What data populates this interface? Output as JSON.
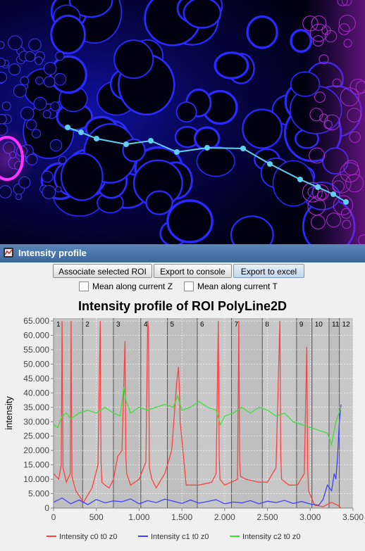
{
  "window": {
    "title": "Intensity profile",
    "buttons": {
      "associate": "Associate selected ROI",
      "console": "Export to console",
      "excel": "Export to excel"
    },
    "checkboxes": {
      "mean_z": {
        "label": "Mean along current Z",
        "checked": false
      },
      "mean_t": {
        "label": "Mean along current T",
        "checked": false
      }
    }
  },
  "chart_data": {
    "type": "line",
    "title": "Intensity profile of ROI PolyLine2D",
    "xlabel": "",
    "ylabel": "intensity",
    "xlim": [
      0,
      3500
    ],
    "ylim": [
      0,
      66000
    ],
    "x_ticks": [
      0,
      500,
      1000,
      1500,
      2000,
      2500,
      3000,
      3500
    ],
    "x_tick_labels": [
      "0",
      "500",
      "1.000",
      "1.500",
      "2.000",
      "2.500",
      "3.000",
      "3.500"
    ],
    "y_ticks": [
      0,
      5000,
      10000,
      15000,
      20000,
      25000,
      30000,
      35000,
      40000,
      45000,
      50000,
      55000,
      60000,
      65000
    ],
    "y_tick_labels": [
      "0",
      "5.000",
      "10.000",
      "15.000",
      "20.000",
      "25.000",
      "30.000",
      "35.000",
      "40.000",
      "45.000",
      "50.000",
      "55.000",
      "60.000",
      "65.000"
    ],
    "segments": [
      {
        "label": "1",
        "x0": 0,
        "x1": 180
      },
      {
        "label": "2",
        "x0": 340,
        "x1": 350
      },
      {
        "label": "3",
        "x0": 700,
        "x1": 720
      },
      {
        "label": "4",
        "x0": 1020,
        "x1": 1030
      },
      {
        "label": "5",
        "x0": 1330,
        "x1": 1340
      },
      {
        "label": "6",
        "x0": 1680,
        "x1": 1690
      },
      {
        "label": "7",
        "x0": 2080,
        "x1": 2090
      },
      {
        "label": "8",
        "x0": 2440,
        "x1": 2450
      },
      {
        "label": "9",
        "x0": 2840,
        "x1": 2850
      },
      {
        "label": "10",
        "x0": 3020,
        "x1": 3030
      },
      {
        "label": "11",
        "x0": 3220,
        "x1": 3230
      },
      {
        "label": "12",
        "x0": 3340,
        "x1": 3350
      }
    ],
    "series": [
      {
        "name": "Intensity c0 t0 z0",
        "color": "#ff4040",
        "x": [
          0,
          60,
          90,
          100,
          110,
          150,
          195,
          205,
          215,
          260,
          350,
          450,
          520,
          545,
          555,
          565,
          600,
          650,
          700,
          750,
          800,
          835,
          845,
          855,
          900,
          1000,
          1080,
          1100,
          1110,
          1120,
          1150,
          1200,
          1300,
          1380,
          1440,
          1460,
          1470,
          1480,
          1550,
          1700,
          1850,
          1900,
          1925,
          1935,
          1945,
          2000,
          2150,
          2165,
          2175,
          2185,
          2250,
          2400,
          2500,
          2600,
          2645,
          2655,
          2665,
          2750,
          2850,
          2930,
          2960,
          2970,
          2980,
          3050,
          3150,
          3250,
          3320,
          3360
        ],
        "y": [
          12000,
          10000,
          15000,
          65000,
          14000,
          9000,
          12000,
          65000,
          11000,
          6000,
          2000,
          7000,
          15000,
          65000,
          16000,
          9000,
          8000,
          7000,
          10000,
          18000,
          20000,
          58000,
          18000,
          12000,
          8000,
          10000,
          16000,
          65000,
          62000,
          14000,
          10000,
          7000,
          12000,
          20000,
          44000,
          49000,
          42000,
          30000,
          8000,
          8000,
          9000,
          12000,
          65000,
          18000,
          10000,
          8000,
          10000,
          65000,
          16000,
          11000,
          10000,
          9000,
          9000,
          14000,
          65000,
          18000,
          10000,
          8000,
          8000,
          12000,
          56000,
          14000,
          6000,
          1000,
          500,
          2000,
          1000,
          0
        ]
      },
      {
        "name": "Intensity c1 t0 z0",
        "color": "#4040ff",
        "x": [
          0,
          100,
          200,
          300,
          400,
          500,
          600,
          700,
          800,
          900,
          1000,
          1100,
          1200,
          1300,
          1400,
          1500,
          1600,
          1700,
          1800,
          1900,
          2000,
          2100,
          2200,
          2300,
          2400,
          2500,
          2600,
          2700,
          2800,
          2900,
          3000,
          3100,
          3150,
          3200,
          3250,
          3280,
          3300,
          3320,
          3340,
          3360
        ],
        "y": [
          2000,
          3500,
          1500,
          2800,
          1200,
          3000,
          1800,
          2500,
          2200,
          3200,
          1500,
          2600,
          1900,
          3100,
          2400,
          1600,
          2800,
          1700,
          2300,
          2900,
          1500,
          2100,
          1800,
          2600,
          1500,
          2400,
          1900,
          2700,
          1600,
          2300,
          1400,
          1000,
          3000,
          8000,
          6000,
          12000,
          10000,
          18000,
          30000,
          36000
        ]
      },
      {
        "name": "Intensity c2 t0 z0",
        "color": "#40dd40",
        "x": [
          0,
          50,
          100,
          150,
          200,
          300,
          400,
          500,
          600,
          700,
          780,
          820,
          850,
          900,
          1000,
          1100,
          1200,
          1300,
          1400,
          1450,
          1500,
          1600,
          1700,
          1800,
          1900,
          1950,
          2000,
          2100,
          2200,
          2300,
          2400,
          2500,
          2600,
          2700,
          2800,
          2900,
          3000,
          3100,
          3200,
          3250,
          3300,
          3360
        ],
        "y": [
          29000,
          28000,
          32000,
          33000,
          31000,
          33000,
          34000,
          33000,
          35000,
          33000,
          32000,
          42000,
          37000,
          33000,
          35000,
          34000,
          35000,
          36000,
          35000,
          39000,
          34000,
          35000,
          37000,
          35000,
          34000,
          29000,
          32000,
          33000,
          35000,
          33000,
          35000,
          34000,
          32000,
          33000,
          30000,
          29000,
          28000,
          27000,
          26000,
          22000,
          30000,
          35000
        ]
      }
    ],
    "legend_position": "bottom"
  }
}
